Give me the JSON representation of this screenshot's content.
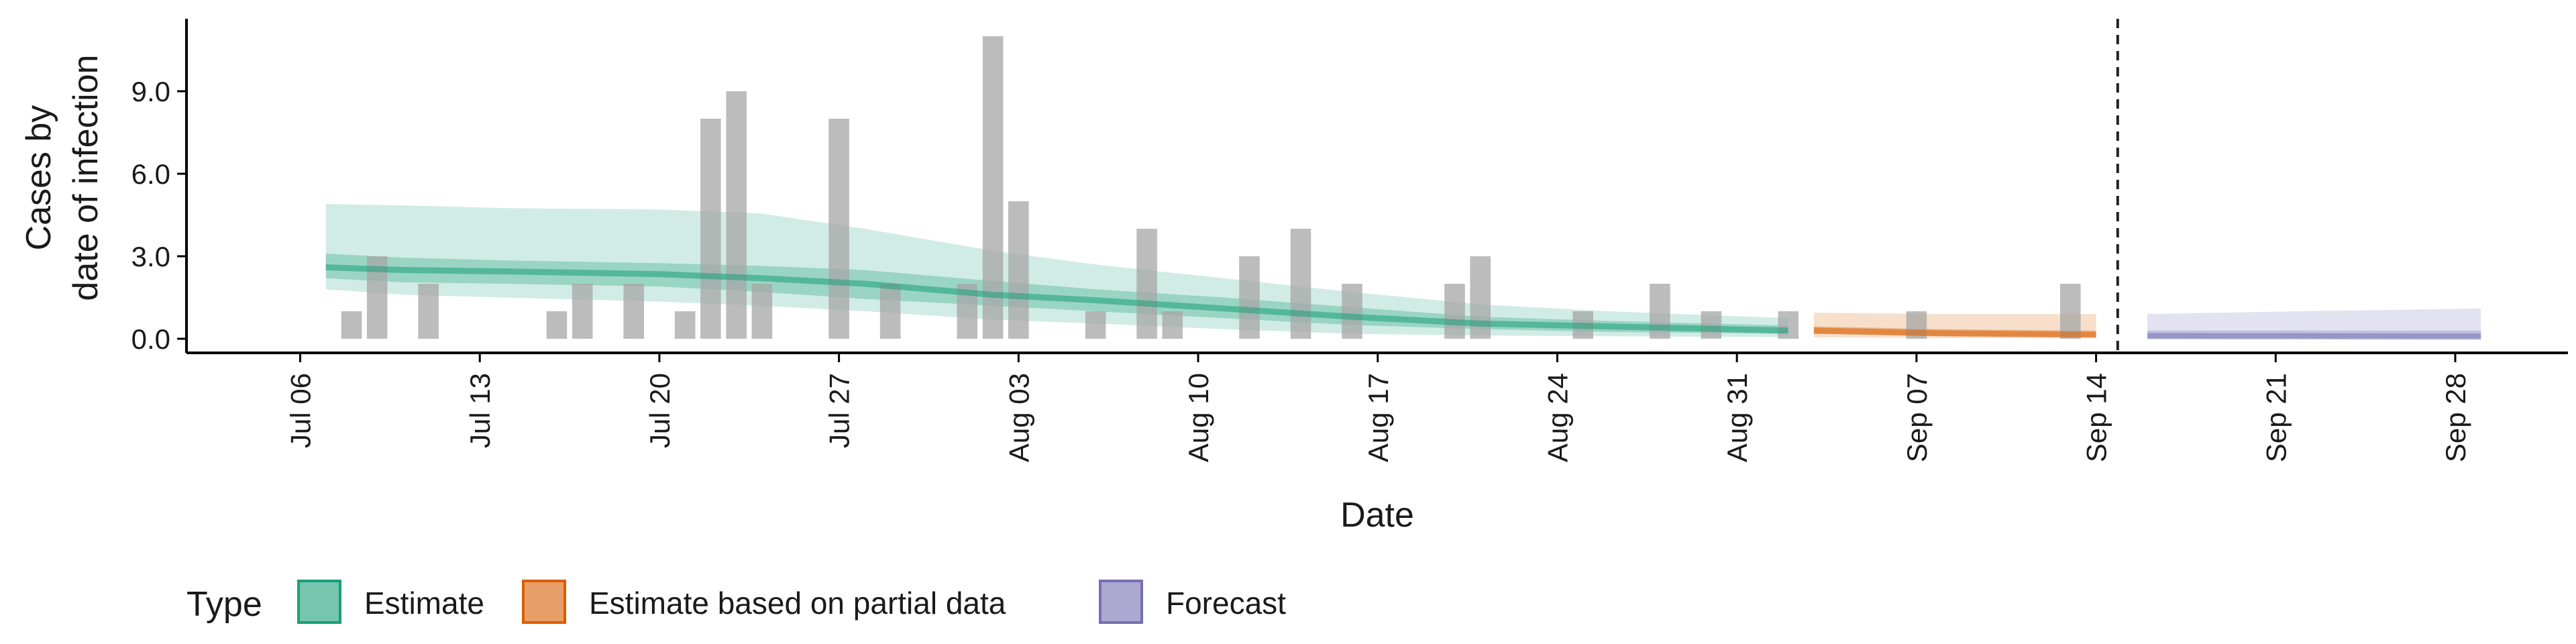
{
  "chart_data": {
    "type": "bar",
    "xlabel": "Date",
    "ylabel_lines": [
      "Cases by",
      "date of infection"
    ],
    "x_range": [
      "2020-07-01",
      "2020-10-03"
    ],
    "ylim": [
      -0.5,
      11.7
    ],
    "y_ticks": [
      0,
      3,
      6,
      9
    ],
    "y_tick_labels": [
      "0.0",
      "3.0",
      "6.0",
      "9.0"
    ],
    "x_ticks": [
      "2020-07-06",
      "2020-07-13",
      "2020-07-20",
      "2020-07-27",
      "2020-08-03",
      "2020-08-10",
      "2020-08-17",
      "2020-08-24",
      "2020-08-31",
      "2020-09-07",
      "2020-09-14",
      "2020-09-21",
      "2020-09-28"
    ],
    "x_tick_labels": [
      "Jul 06",
      "Jul 13",
      "Jul 20",
      "Jul 27",
      "Aug 03",
      "Aug 10",
      "Aug 17",
      "Aug 24",
      "Aug 31",
      "Sep 07",
      "Sep 14",
      "Sep 21",
      "Sep 28"
    ],
    "grid": false,
    "forecast_line_date": "2020-09-15",
    "legend": {
      "title": "Type",
      "position": "bottom",
      "items": [
        {
          "label": "Estimate",
          "color": "#1b9e77"
        },
        {
          "label": "Estimate based on partial data",
          "color": "#d95f02"
        },
        {
          "label": "Forecast",
          "color": "#7570b3"
        }
      ]
    },
    "bar_color": "#a6a6a6",
    "bars": [
      {
        "date": "2020-07-08",
        "value": 1
      },
      {
        "date": "2020-07-09",
        "value": 3
      },
      {
        "date": "2020-07-11",
        "value": 2
      },
      {
        "date": "2020-07-16",
        "value": 1
      },
      {
        "date": "2020-07-17",
        "value": 2
      },
      {
        "date": "2020-07-19",
        "value": 2
      },
      {
        "date": "2020-07-21",
        "value": 1
      },
      {
        "date": "2020-07-22",
        "value": 8
      },
      {
        "date": "2020-07-23",
        "value": 9
      },
      {
        "date": "2020-07-24",
        "value": 2
      },
      {
        "date": "2020-07-27",
        "value": 8
      },
      {
        "date": "2020-07-29",
        "value": 2
      },
      {
        "date": "2020-08-01",
        "value": 2
      },
      {
        "date": "2020-08-02",
        "value": 11
      },
      {
        "date": "2020-08-03",
        "value": 5
      },
      {
        "date": "2020-08-06",
        "value": 1
      },
      {
        "date": "2020-08-08",
        "value": 4
      },
      {
        "date": "2020-08-09",
        "value": 1
      },
      {
        "date": "2020-08-12",
        "value": 3
      },
      {
        "date": "2020-08-14",
        "value": 4
      },
      {
        "date": "2020-08-16",
        "value": 2
      },
      {
        "date": "2020-08-20",
        "value": 2
      },
      {
        "date": "2020-08-21",
        "value": 3
      },
      {
        "date": "2020-08-25",
        "value": 1
      },
      {
        "date": "2020-08-28",
        "value": 2
      },
      {
        "date": "2020-08-30",
        "value": 1
      },
      {
        "date": "2020-09-02",
        "value": 1
      },
      {
        "date": "2020-09-07",
        "value": 1
      },
      {
        "date": "2020-09-13",
        "value": 2
      }
    ],
    "series": [
      {
        "type": "Estimate",
        "color": "#1b9e77",
        "dates": [
          "2020-07-07",
          "2020-07-10",
          "2020-07-14",
          "2020-07-20",
          "2020-07-24",
          "2020-07-28",
          "2020-08-02",
          "2020-08-06",
          "2020-08-11",
          "2020-08-16",
          "2020-08-21",
          "2020-08-26",
          "2020-09-02"
        ],
        "median": [
          2.6,
          2.5,
          2.45,
          2.35,
          2.2,
          2.0,
          1.6,
          1.4,
          1.1,
          0.8,
          0.55,
          0.45,
          0.3
        ],
        "lower_50": [
          2.2,
          2.05,
          2.0,
          1.9,
          1.7,
          1.45,
          1.2,
          1.0,
          0.75,
          0.5,
          0.35,
          0.25,
          0.18
        ],
        "upper_50": [
          3.1,
          2.95,
          2.85,
          2.75,
          2.65,
          2.5,
          2.1,
          1.8,
          1.5,
          1.15,
          0.8,
          0.65,
          0.48
        ],
        "lower_90": [
          1.8,
          1.6,
          1.5,
          1.35,
          1.2,
          1.0,
          0.7,
          0.55,
          0.35,
          0.18,
          0.12,
          0.09,
          0.06
        ],
        "upper_90": [
          4.9,
          4.85,
          4.75,
          4.7,
          4.55,
          4.0,
          3.2,
          2.7,
          2.2,
          1.7,
          1.25,
          1.0,
          0.75
        ]
      },
      {
        "type": "Estimate based on partial data",
        "color": "#d95f02",
        "dates": [
          "2020-09-03",
          "2020-09-08",
          "2020-09-14"
        ],
        "median": [
          0.3,
          0.2,
          0.15
        ],
        "lower_50": [
          0.18,
          0.1,
          0.07
        ],
        "upper_50": [
          0.45,
          0.35,
          0.3
        ],
        "lower_90": [
          0.05,
          0.03,
          0.02
        ],
        "upper_90": [
          0.95,
          0.9,
          0.9
        ]
      },
      {
        "type": "Forecast",
        "color": "#7570b3",
        "dates": [
          "2020-09-16",
          "2020-09-22",
          "2020-09-29"
        ],
        "median": [
          0.1,
          0.09,
          0.08
        ],
        "lower_50": [
          0.04,
          0.035,
          0.03
        ],
        "upper_50": [
          0.3,
          0.3,
          0.3
        ],
        "lower_90": [
          0.0,
          0.0,
          0.0
        ],
        "upper_90": [
          0.9,
          1.0,
          1.1
        ]
      }
    ]
  }
}
